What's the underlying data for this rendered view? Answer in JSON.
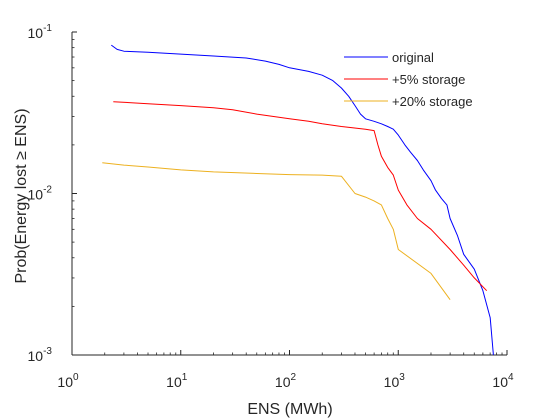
{
  "chart_data": {
    "type": "line",
    "xlabel": "ENS (MWh)",
    "ylabel": "Prob(Energy lost ≥ ENS)",
    "xscale": "log",
    "yscale": "log",
    "xlim": [
      1,
      10000
    ],
    "ylim": [
      0.001,
      0.1
    ],
    "grid": false,
    "legend_placement": "top-right",
    "x_ticks": [
      {
        "base": "10",
        "exp": "0",
        "value": 1
      },
      {
        "base": "10",
        "exp": "1",
        "value": 10
      },
      {
        "base": "10",
        "exp": "2",
        "value": 100
      },
      {
        "base": "10",
        "exp": "3",
        "value": 1000
      },
      {
        "base": "10",
        "exp": "4",
        "value": 10000
      }
    ],
    "y_ticks": [
      {
        "base": "10",
        "exp": "-1",
        "value": 0.1
      },
      {
        "base": "10",
        "exp": "-2",
        "value": 0.01
      },
      {
        "base": "10",
        "exp": "-3",
        "value": 0.001
      }
    ],
    "series": [
      {
        "name": "original",
        "color": "#0000ff",
        "x": [
          2.3,
          2.6,
          3,
          5,
          10,
          20,
          40,
          60,
          80,
          100,
          150,
          200,
          250,
          300,
          350,
          400,
          450,
          500,
          600,
          700,
          800,
          900,
          1000,
          1150,
          1300,
          1500,
          1700,
          2000,
          2200,
          2500,
          2800,
          3000,
          3500,
          4000,
          5000,
          6000,
          7000,
          7500
        ],
        "y": [
          0.083,
          0.078,
          0.076,
          0.075,
          0.073,
          0.071,
          0.069,
          0.066,
          0.063,
          0.06,
          0.057,
          0.054,
          0.05,
          0.045,
          0.04,
          0.035,
          0.031,
          0.029,
          0.028,
          0.027,
          0.026,
          0.025,
          0.023,
          0.02,
          0.018,
          0.016,
          0.014,
          0.012,
          0.0105,
          0.0093,
          0.0085,
          0.007,
          0.0055,
          0.0042,
          0.0034,
          0.0025,
          0.0017,
          0.001
        ]
      },
      {
        "name": "+5% storage",
        "color": "#ff0000",
        "x": [
          2.4,
          5,
          10,
          20,
          30,
          50,
          70,
          100,
          150,
          200,
          300,
          500,
          600,
          650,
          700,
          800,
          900,
          1000,
          1200,
          1500,
          2000,
          3000,
          4000,
          5000,
          6500
        ],
        "y": [
          0.037,
          0.036,
          0.035,
          0.034,
          0.033,
          0.031,
          0.03,
          0.029,
          0.028,
          0.027,
          0.026,
          0.025,
          0.0245,
          0.02,
          0.017,
          0.0145,
          0.013,
          0.0105,
          0.0085,
          0.007,
          0.006,
          0.0045,
          0.0036,
          0.003,
          0.0025
        ]
      },
      {
        "name": "+20% storage",
        "color": "#edb120",
        "x": [
          1.9,
          3,
          5,
          10,
          20,
          50,
          100,
          200,
          300,
          400,
          500,
          600,
          700,
          800,
          900,
          1000,
          2000,
          3000
        ],
        "y": [
          0.0155,
          0.015,
          0.0146,
          0.014,
          0.0136,
          0.0133,
          0.0131,
          0.013,
          0.0128,
          0.01,
          0.0095,
          0.009,
          0.0085,
          0.007,
          0.006,
          0.0045,
          0.0032,
          0.0022
        ]
      }
    ]
  }
}
